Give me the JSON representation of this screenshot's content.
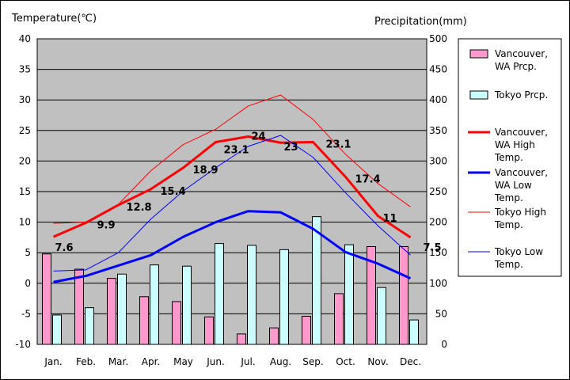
{
  "chart_data": {
    "type": "bar+line",
    "left_axis_title": "Temperature(℃)",
    "right_axis_title": "Precipitation(mm)",
    "categories": [
      "Jan.",
      "Feb.",
      "Mar.",
      "Apr.",
      "May",
      "Jun.",
      "Jul.",
      "Aug.",
      "Sep.",
      "Oct.",
      "Nov.",
      "Dec."
    ],
    "left_ylim": [
      -10,
      40
    ],
    "left_ticks": [
      40,
      35,
      30,
      25,
      20,
      15,
      10,
      5,
      0,
      -5,
      -10
    ],
    "right_ylim": [
      0,
      500
    ],
    "right_ticks": [
      500,
      450,
      400,
      350,
      300,
      250,
      200,
      150,
      100,
      50,
      0
    ],
    "grid": true,
    "plot_background": "#c0c0c0",
    "bar_series": [
      {
        "name": "Vancouver, WA Prcp.",
        "legend_lines": [
          "Vancouver,",
          "WA Prcp."
        ],
        "color": "#ff99cc",
        "values": [
          148,
          123,
          108,
          78,
          70,
          45,
          17,
          27,
          46,
          83,
          160,
          160
        ]
      },
      {
        "name": "Tokyo Prcp.",
        "legend_lines": [
          "Tokyo Prcp."
        ],
        "color": "#ccffff",
        "values": [
          48,
          60,
          115,
          130,
          128,
          165,
          162,
          155,
          209,
          163,
          93,
          40
        ]
      }
    ],
    "line_series": [
      {
        "name": "Vancouver, WA High Temp.",
        "legend_lines": [
          "Vancouver,",
          "WA High",
          "Temp."
        ],
        "color": "#ff0000",
        "width": 3,
        "values": [
          7.6,
          9.9,
          12.8,
          15.4,
          18.9,
          23.1,
          24,
          23,
          23.1,
          17.4,
          11,
          7.5
        ],
        "labels": [
          "7.6",
          "9.9",
          "12.8",
          "15.4",
          "18.9",
          "23.1",
          "24",
          "23",
          "23.1",
          "17.4",
          "11",
          "7.5"
        ]
      },
      {
        "name": "Vancouver, WA Low Temp.",
        "legend_lines": [
          "Vancouver,",
          "WA Low",
          "Temp."
        ],
        "color": "#0000ff",
        "width": 3,
        "values": [
          0.2,
          1.2,
          2.9,
          4.6,
          7.6,
          10.0,
          11.8,
          11.6,
          8.9,
          5.1,
          3.2,
          0.8
        ]
      },
      {
        "name": "Tokyo High Temp.",
        "legend_lines": [
          "Tokyo High",
          "Temp."
        ],
        "color": "#ff0000",
        "width": 1,
        "values": [
          9.8,
          10.0,
          12.9,
          18.4,
          22.7,
          25.2,
          29.0,
          30.8,
          26.8,
          21.1,
          16.3,
          12.5
        ]
      },
      {
        "name": "Tokyo Low Temp.",
        "legend_lines": [
          "Tokyo Low",
          "Temp."
        ],
        "color": "#0000ff",
        "width": 1,
        "values": [
          2.0,
          2.2,
          5.0,
          10.5,
          15.1,
          18.9,
          22.4,
          24.2,
          20.6,
          14.8,
          9.4,
          4.6
        ]
      }
    ]
  }
}
